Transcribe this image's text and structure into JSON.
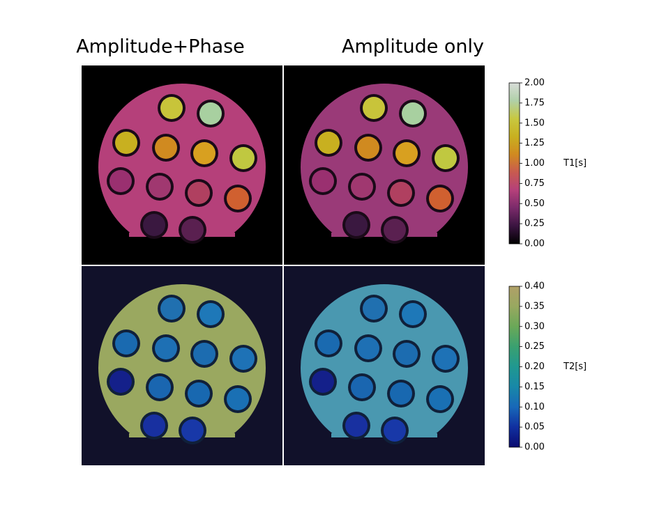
{
  "titles": [
    "Amplitude+Phase",
    "Amplitude only"
  ],
  "chart_data": [
    {
      "type": "colorbar",
      "label": "T1[s]",
      "ylim": [
        0,
        2
      ],
      "yticks": [
        {
          "value": 0,
          "label": "0.00"
        },
        {
          "value": 0.25,
          "label": "0.25"
        },
        {
          "value": 0.5,
          "label": "0.50"
        },
        {
          "value": 0.75,
          "label": "0.75"
        },
        {
          "value": 1,
          "label": "1.00"
        },
        {
          "value": 1.25,
          "label": "1.25"
        },
        {
          "value": 1.5,
          "label": "1.50"
        },
        {
          "value": 1.75,
          "label": "1.75"
        },
        {
          "value": 2,
          "label": "2.00"
        }
      ],
      "colors": [
        "#000000",
        "#3a1440",
        "#7a2a6a",
        "#b5407a",
        "#c85a50",
        "#d08a20",
        "#c8b020",
        "#c8c840",
        "#b0d0a8",
        "#d8dcd8"
      ]
    },
    {
      "type": "colorbar",
      "label": "T2[s]",
      "ylim": [
        0,
        0.4
      ],
      "yticks": [
        {
          "value": 0,
          "label": "0.00"
        },
        {
          "value": 0.05,
          "label": "0.05"
        },
        {
          "value": 0.1,
          "label": "0.10"
        },
        {
          "value": 0.15,
          "label": "0.15"
        },
        {
          "value": 0.2,
          "label": "0.20"
        },
        {
          "value": 0.25,
          "label": "0.25"
        },
        {
          "value": 0.3,
          "label": "0.30"
        },
        {
          "value": 0.35,
          "label": "0.35"
        },
        {
          "value": 0.4,
          "label": "0.40"
        }
      ],
      "colors": [
        "#0a0a70",
        "#1030a0",
        "#1868b8",
        "#1888a8",
        "#209890",
        "#3aa070",
        "#6aa858",
        "#98a860",
        "#b0a068"
      ]
    }
  ]
}
